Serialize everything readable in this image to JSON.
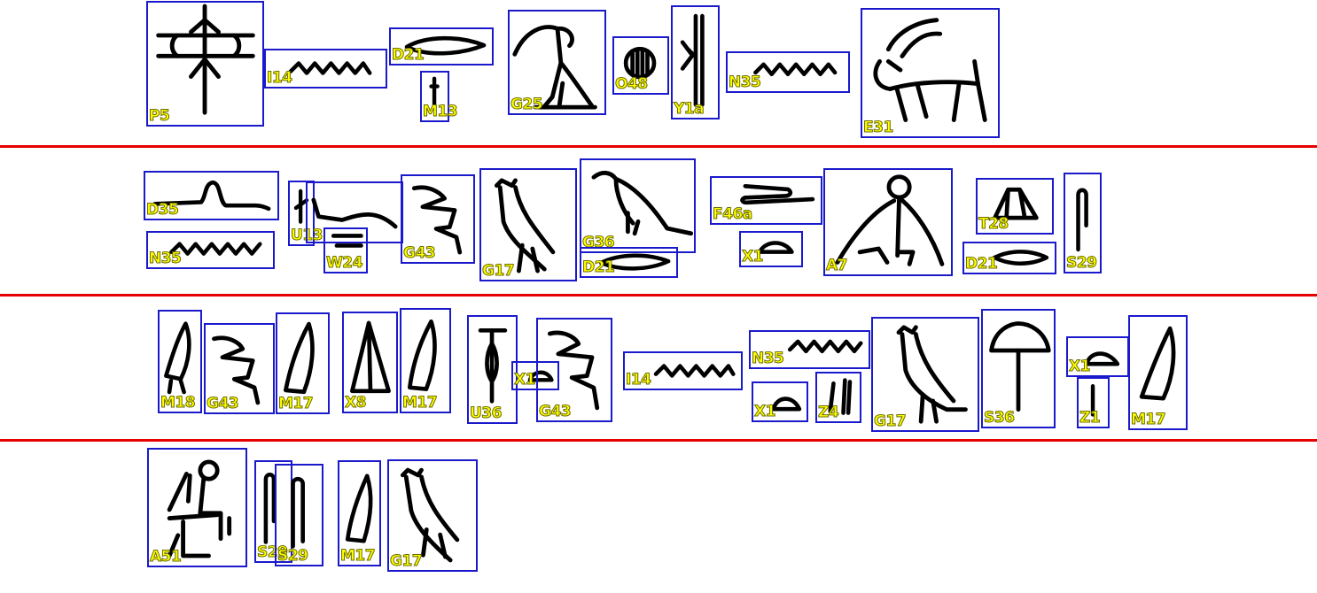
{
  "colors": {
    "line_separator": "#e60000",
    "box_border": "#1a1acc",
    "label_text": "#ffff00",
    "glyph_ink": "#000000",
    "background": "#ffffff"
  },
  "rows": [
    {
      "signs": [
        {
          "code": "P5",
          "icon": "sail-mast-glyph"
        },
        {
          "code": "I14",
          "icon": "serpent-glyph"
        },
        {
          "code": "D21",
          "icon": "mouth-glyph"
        },
        {
          "code": "M13",
          "icon": "papyrus-stem-glyph"
        },
        {
          "code": "G25",
          "icon": "crested-ibis-glyph"
        },
        {
          "code": "O48",
          "icon": "granary-circle-glyph"
        },
        {
          "code": "Y1a",
          "icon": "scroll-glyph"
        },
        {
          "code": "N35",
          "icon": "water-ripple-glyph"
        },
        {
          "code": "E31",
          "icon": "goat-glyph"
        }
      ]
    },
    {
      "signs": [
        {
          "code": "D35",
          "icon": "negation-arms-glyph"
        },
        {
          "code": "N35",
          "icon": "water-ripple-glyph"
        },
        {
          "code": "U13",
          "icon": "plough-glyph"
        },
        {
          "code": "W24",
          "icon": "pot-glyph"
        },
        {
          "code": "G43",
          "icon": "quail-chick-glyph"
        },
        {
          "code": "G17",
          "icon": "owl-glyph"
        },
        {
          "code": "G36",
          "icon": "swallow-glyph"
        },
        {
          "code": "D21",
          "icon": "mouth-glyph"
        },
        {
          "code": "F46a",
          "icon": "intestine-glyph"
        },
        {
          "code": "X1",
          "icon": "bread-loaf-glyph"
        },
        {
          "code": "A7",
          "icon": "seated-tired-man-glyph"
        },
        {
          "code": "T28",
          "icon": "butcher-block-glyph"
        },
        {
          "code": "D21",
          "icon": "mouth-glyph"
        },
        {
          "code": "S29",
          "icon": "folded-cloth-glyph"
        }
      ]
    },
    {
      "signs": [
        {
          "code": "M18",
          "icon": "reed-leaf-legs-glyph"
        },
        {
          "code": "G43",
          "icon": "quail-chick-glyph"
        },
        {
          "code": "M17",
          "icon": "reed-leaf-glyph"
        },
        {
          "code": "X8",
          "icon": "conical-loaf-glyph"
        },
        {
          "code": "M17",
          "icon": "reed-leaf-glyph"
        },
        {
          "code": "U36",
          "icon": "fuller-club-glyph"
        },
        {
          "code": "X1",
          "icon": "bread-loaf-glyph"
        },
        {
          "code": "G43",
          "icon": "quail-chick-glyph"
        },
        {
          "code": "I14",
          "icon": "serpent-glyph"
        },
        {
          "code": "N35",
          "icon": "water-ripple-glyph"
        },
        {
          "code": "X1",
          "icon": "bread-loaf-glyph"
        },
        {
          "code": "Z4",
          "icon": "dual-strokes-glyph"
        },
        {
          "code": "G17",
          "icon": "owl-glyph"
        },
        {
          "code": "S36",
          "icon": "sunshade-glyph"
        },
        {
          "code": "X1",
          "icon": "bread-loaf-glyph"
        },
        {
          "code": "Z1",
          "icon": "single-stroke-glyph"
        },
        {
          "code": "M17",
          "icon": "reed-leaf-glyph"
        }
      ]
    },
    {
      "signs": [
        {
          "code": "A51",
          "icon": "noble-seated-glyph"
        },
        {
          "code": "S29",
          "icon": "folded-cloth-glyph"
        },
        {
          "code": "S29",
          "icon": "folded-cloth-glyph"
        },
        {
          "code": "M17",
          "icon": "reed-leaf-glyph"
        },
        {
          "code": "G17",
          "icon": "owl-glyph"
        }
      ]
    }
  ]
}
